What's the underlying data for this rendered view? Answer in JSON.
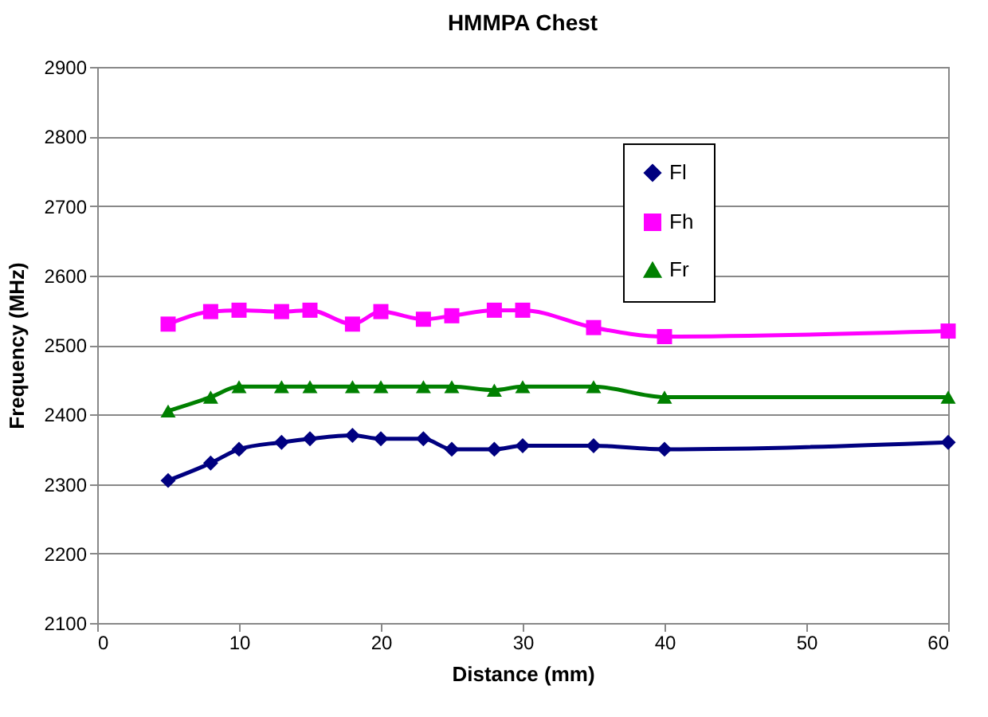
{
  "chart_data": {
    "type": "line",
    "title": "HMMPA Chest",
    "xlabel": "Distance (mm)",
    "ylabel": "Frequency (MHz)",
    "x": [
      5,
      8,
      10,
      13,
      15,
      18,
      20,
      23,
      25,
      28,
      30,
      35,
      40,
      60
    ],
    "series": [
      {
        "name": "Fl",
        "color": "#000080",
        "marker": "diamond",
        "values": [
          2305,
          2330,
          2350,
          2360,
          2365,
          2370,
          2365,
          2365,
          2350,
          2350,
          2355,
          2355,
          2350,
          2360
        ]
      },
      {
        "name": "Fh",
        "color": "#ff00ff",
        "marker": "square",
        "values": [
          2530,
          2548,
          2550,
          2548,
          2550,
          2530,
          2548,
          2537,
          2542,
          2550,
          2550,
          2525,
          2512,
          2520
        ]
      },
      {
        "name": "Fr",
        "color": "#008000",
        "marker": "triangle",
        "values": [
          2405,
          2425,
          2440,
          2440,
          2440,
          2440,
          2440,
          2440,
          2440,
          2435,
          2440,
          2440,
          2425,
          2425
        ]
      }
    ],
    "xlim": [
      0,
      60
    ],
    "xticks": [
      0,
      10,
      20,
      30,
      40,
      50,
      60
    ],
    "ylim": [
      2100,
      2900
    ],
    "yticks": [
      2100,
      2200,
      2300,
      2400,
      2500,
      2600,
      2700,
      2800,
      2900
    ],
    "grid": "y",
    "legend": "top right"
  }
}
